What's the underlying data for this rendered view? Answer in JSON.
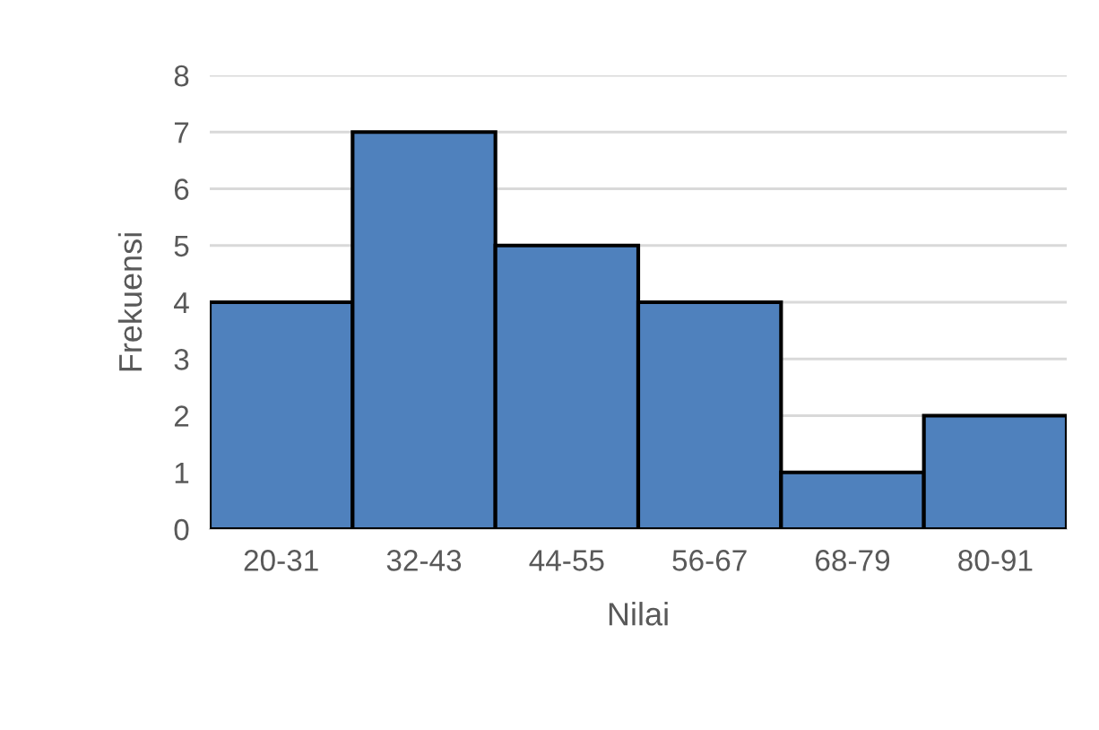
{
  "chart_data": {
    "type": "bar",
    "xlabel": "Nilai",
    "ylabel": "Frekuensi",
    "categories": [
      "20-31",
      "32-43",
      "44-55",
      "56-67",
      "68-79",
      "80-91"
    ],
    "values": [
      4,
      7,
      5,
      4,
      1,
      2
    ],
    "color": "#4f81bd",
    "ylim": [
      0,
      8
    ],
    "yticks": [
      0,
      1,
      2,
      3,
      4,
      5,
      6,
      7,
      8
    ],
    "grid": "y",
    "legend": false
  }
}
